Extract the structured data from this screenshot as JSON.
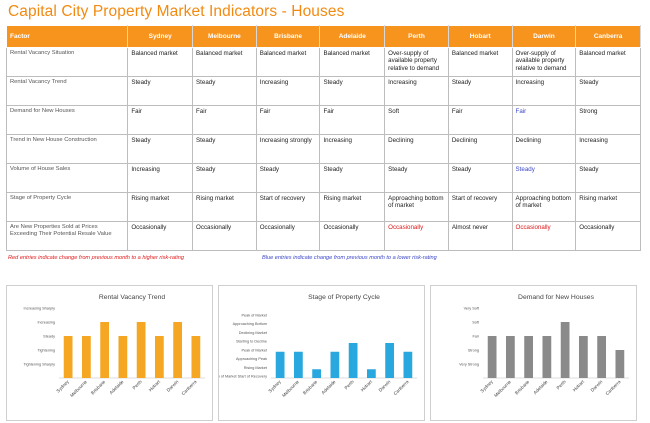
{
  "title": "Capital City Property Market Indicators - Houses",
  "table": {
    "header": [
      "Factor",
      "Sydney",
      "Melbourne",
      "Brisbane",
      "Adelaide",
      "Perth",
      "Hobart",
      "Darwin",
      "Canberra"
    ],
    "rows": [
      {
        "factor": "Rental Vacancy Situation",
        "cells": [
          "Balanced market",
          "Balanced market",
          "Balanced market",
          "Balanced market",
          "Over-supply of available property relative to demand",
          "Balanced market",
          "Over-supply of available property relative to demand",
          "Balanced market"
        ],
        "colors": [
          "",
          "",
          "",
          "",
          "",
          "",
          "",
          ""
        ]
      },
      {
        "factor": "Rental Vacancy Trend",
        "cells": [
          "Steady",
          "Steady",
          "Increasing",
          "Steady",
          "Increasing",
          "Steady",
          "Increasing",
          "Steady"
        ],
        "colors": [
          "",
          "",
          "",
          "",
          "",
          "",
          "",
          ""
        ]
      },
      {
        "factor": "Demand for New Houses",
        "cells": [
          "Fair",
          "Fair",
          "Fair",
          "Fair",
          "Soft",
          "Fair",
          "Fair",
          "Strong"
        ],
        "colors": [
          "",
          "",
          "",
          "",
          "",
          "",
          "blue",
          ""
        ]
      },
      {
        "factor": "Trend in New House Construction",
        "cells": [
          "Steady",
          "Steady",
          "Increasing strongly",
          "Increasing",
          "Declining",
          "Declining",
          "Declining",
          "Increasing"
        ],
        "colors": [
          "",
          "",
          "",
          "",
          "",
          "",
          "",
          ""
        ]
      },
      {
        "factor": "Volume of House Sales",
        "cells": [
          "Increasing",
          "Steady",
          "Steady",
          "Steady",
          "Steady",
          "Steady",
          "Steady",
          "Steady"
        ],
        "colors": [
          "",
          "",
          "",
          "",
          "",
          "",
          "blue",
          ""
        ]
      },
      {
        "factor": "Stage of Property Cycle",
        "cells": [
          "Rising market",
          "Rising market",
          "Start of recovery",
          "Rising market",
          "Approaching bottom of market",
          "Start of recovery",
          "Approaching bottom of market",
          "Rising market"
        ],
        "colors": [
          "",
          "",
          "",
          "",
          "",
          "",
          "",
          ""
        ]
      },
      {
        "factor": "Are New Properties Sold at Prices Exceeding Their Potential Resale Value",
        "cells": [
          "Occasionally",
          "Occasionally",
          "Occasionally",
          "Occasionally",
          "Occasionally",
          "Almost never",
          "Occasionally",
          "Occasionally"
        ],
        "colors": [
          "",
          "",
          "",
          "",
          "red",
          "",
          "red",
          ""
        ]
      }
    ]
  },
  "notes": {
    "red": "Red entries indicate change from previous month to a higher risk-rating",
    "blue": "Blue entries indicate change from previous month to a lower risk-rating"
  },
  "colors": {
    "header_bg": "#f7941d",
    "title": "#f28a12",
    "red": "#e0191a",
    "blue": "#3b47c9",
    "bar_orange": "#f5a623",
    "bar_blue": "#29a8df",
    "bar_grey": "#8a8a8a"
  },
  "chart_data": [
    {
      "type": "bar",
      "title": "Rental Vacancy Trend",
      "categories": [
        "Sydney",
        "Melbourne",
        "Brisbane",
        "Adelaide",
        "Perth",
        "Hobart",
        "Darwin",
        "Canberra"
      ],
      "ytick_labels": [
        "Tightening Sharply",
        "Tightening",
        "Steady",
        "Increasing",
        "Increasing Sharply"
      ],
      "values": [
        3,
        3,
        4,
        3,
        4,
        3,
        4,
        3
      ],
      "ylim": [
        0,
        5
      ],
      "color": "#f5a623"
    },
    {
      "type": "bar",
      "title": "Stage of Property Cycle",
      "categories": [
        "Sydney",
        "Melbourne",
        "Brisbane",
        "Adelaide",
        "Perth",
        "Hobart",
        "Darwin",
        "Canberra"
      ],
      "ytick_labels": [
        "Bottom of Market Start of Recovery",
        "Rising Market",
        "Approaching Peak",
        "Peak of Market",
        "Starting to Decline",
        "Declining Market",
        "Approaching Bottom",
        "Peak of Market"
      ],
      "ytick_order": [
        "Start of Recovery",
        "Rising Market",
        "Approaching Bottom",
        "Declining Market",
        "Approaching Peak",
        "Starting to Decline",
        "Peak of Market"
      ],
      "values": [
        3,
        3,
        1,
        3,
        4,
        1,
        4,
        3
      ],
      "ylim": [
        0,
        8
      ],
      "color": "#29a8df"
    },
    {
      "type": "bar",
      "title": "Demand for New Houses",
      "categories": [
        "Sydney",
        "Melbourne",
        "Brisbane",
        "Adelaide",
        "Perth",
        "Hobart",
        "Darwin",
        "Canberra"
      ],
      "ytick_labels": [
        "Very Strong",
        "Strong",
        "Fair",
        "Soft",
        "Very Soft"
      ],
      "values": [
        3,
        3,
        3,
        3,
        4,
        3,
        3,
        2
      ],
      "ylim": [
        0,
        5
      ],
      "color": "#8a8a8a"
    }
  ]
}
